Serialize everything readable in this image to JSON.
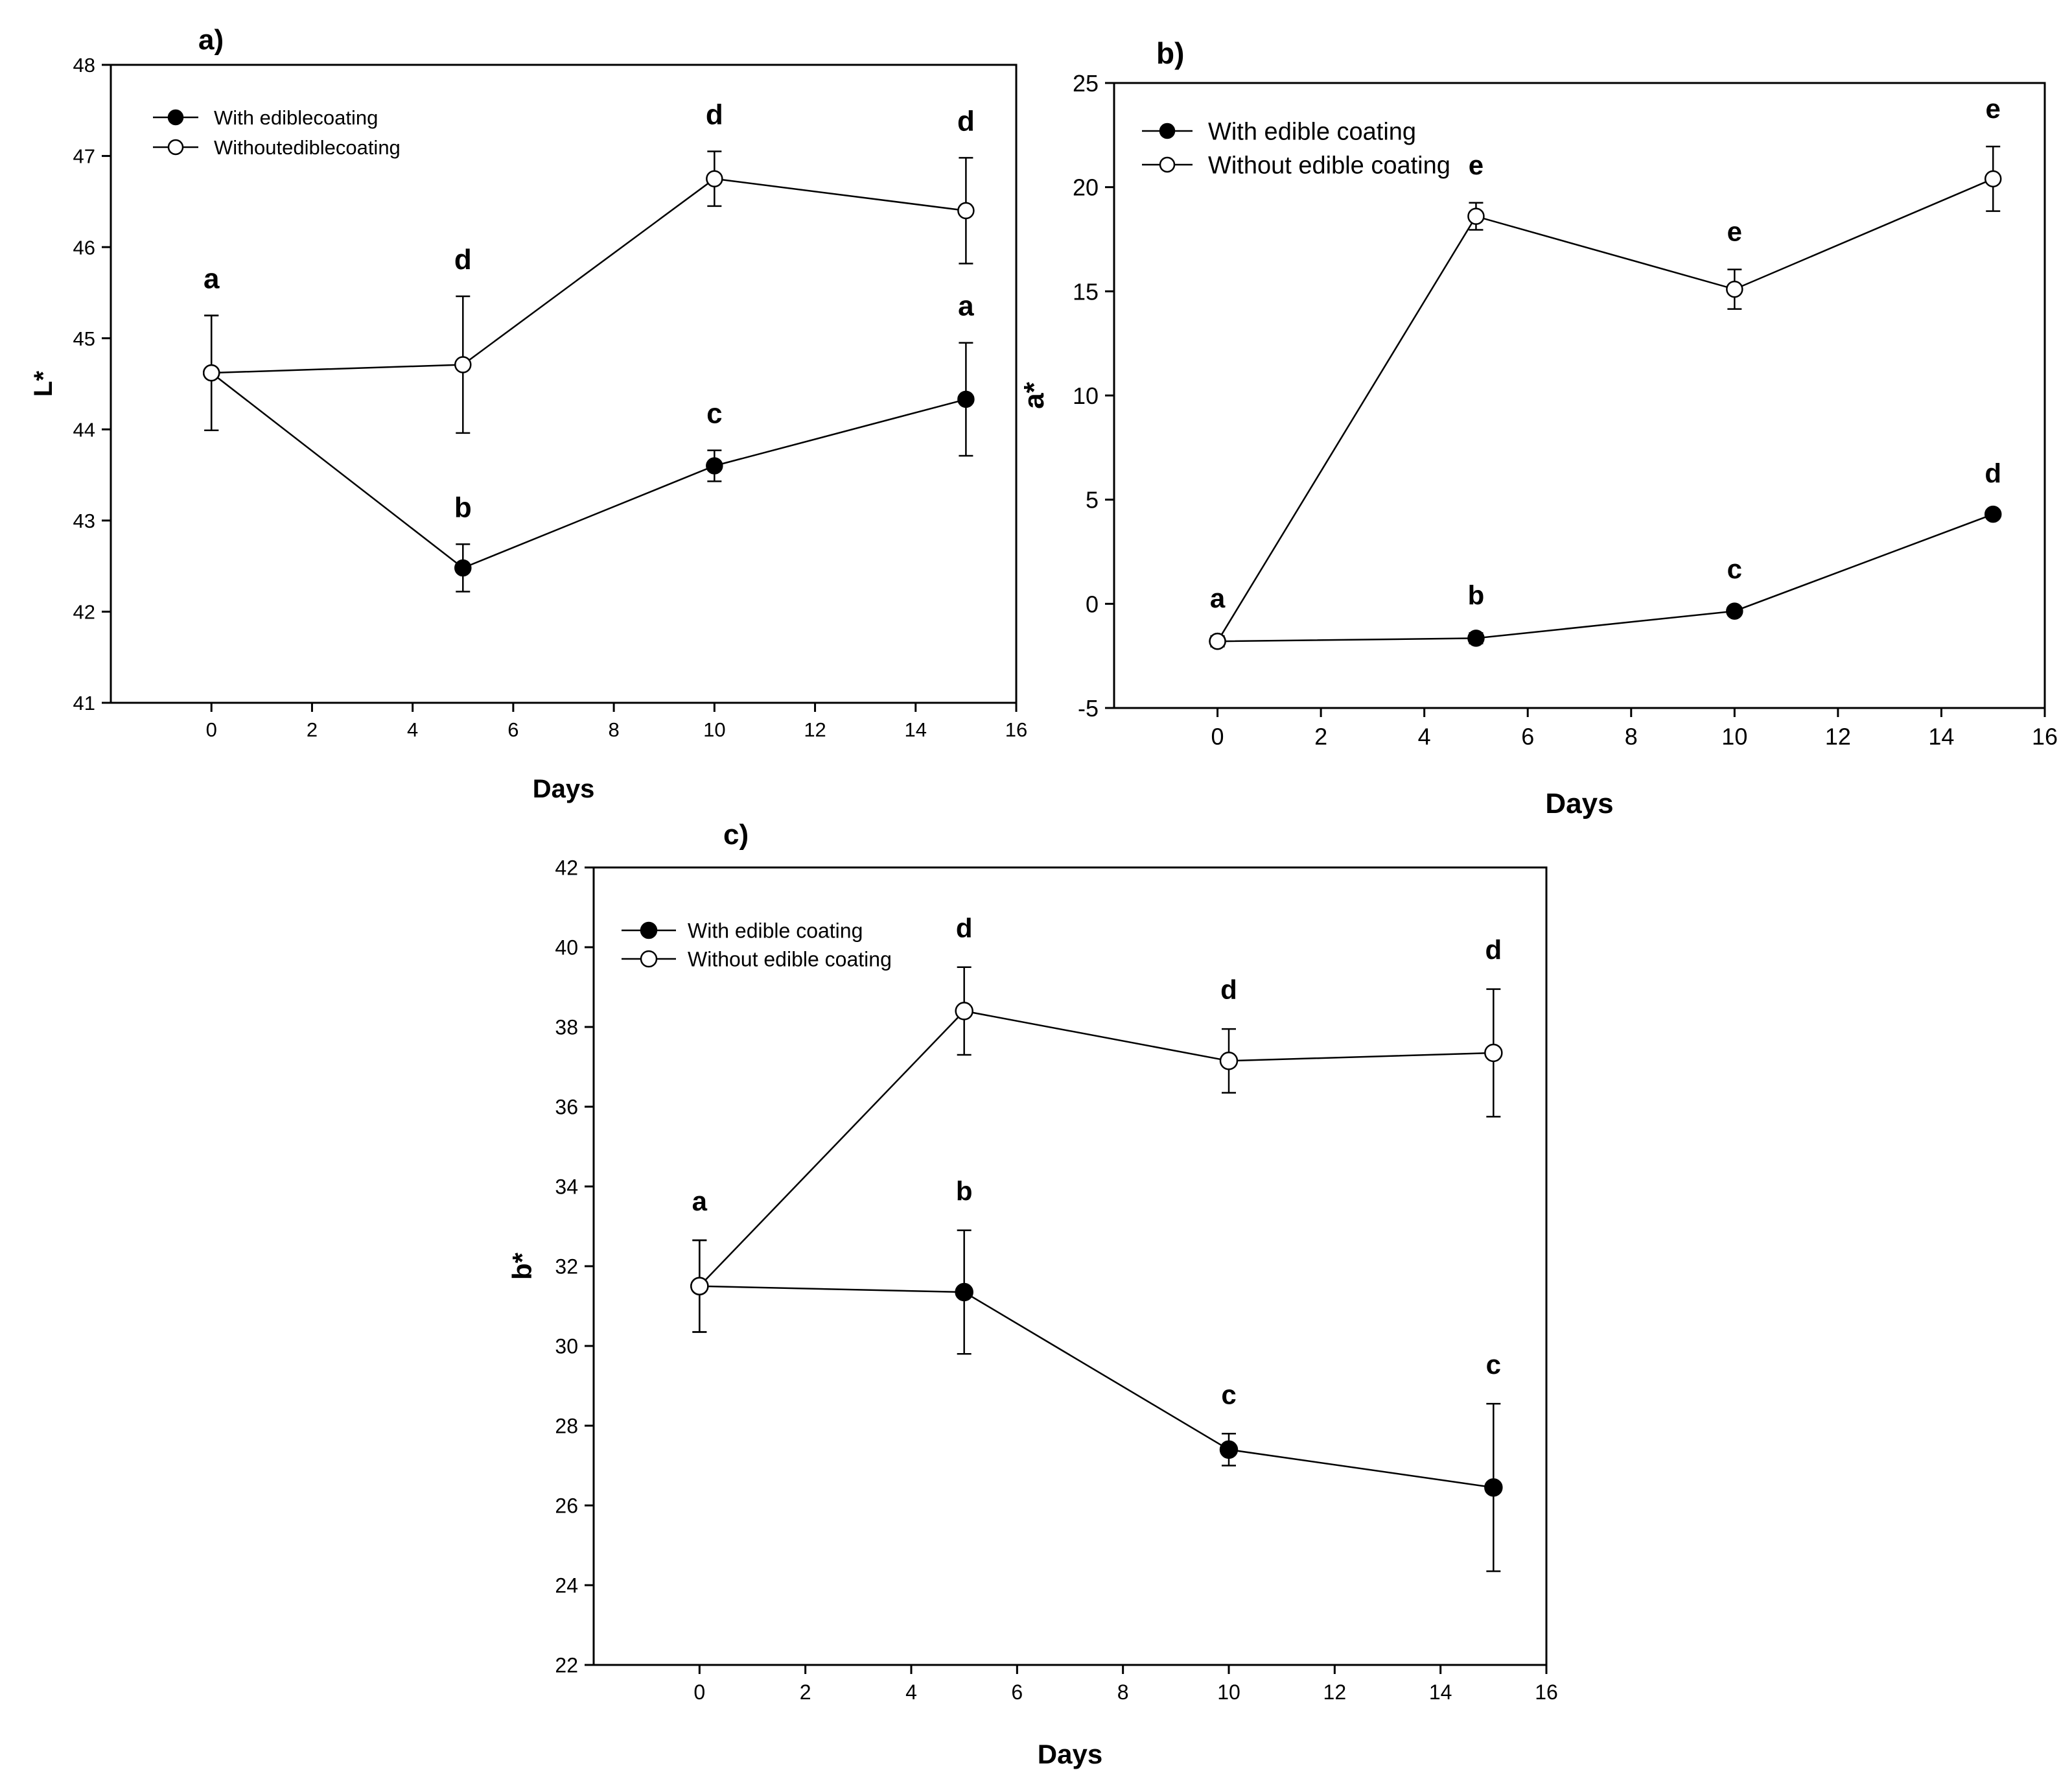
{
  "chart_data": [
    {
      "panel_label": "a)",
      "type": "line",
      "xlabel": "Days",
      "ylabel": "L*",
      "xlim": [
        -2,
        16
      ],
      "ylim": [
        41,
        48
      ],
      "xticks": [
        0,
        2,
        4,
        6,
        8,
        10,
        12,
        14,
        16
      ],
      "yticks": [
        41,
        42,
        43,
        44,
        45,
        46,
        47,
        48
      ],
      "x": [
        0,
        5,
        10,
        15
      ],
      "legend_position": "top-left",
      "series": [
        {
          "name": "With ediblecoating",
          "marker": "filled-circle",
          "values": [
            44.62,
            42.48,
            43.6,
            44.33
          ],
          "errors": [
            0.63,
            0.26,
            0.17,
            0.62
          ],
          "letters": [
            "a",
            "b",
            "c",
            "a"
          ]
        },
        {
          "name": "Withoutediblecoating",
          "marker": "open-circle",
          "values": [
            44.62,
            44.71,
            46.75,
            46.4
          ],
          "errors": [
            0.63,
            0.75,
            0.3,
            0.58
          ],
          "letters": [
            "",
            "d",
            "d",
            "d"
          ]
        }
      ]
    },
    {
      "panel_label": "b)",
      "type": "line",
      "xlabel": "Days",
      "ylabel": "a*",
      "xlim": [
        -2,
        16
      ],
      "ylim": [
        -5,
        25
      ],
      "xticks": [
        0,
        2,
        4,
        6,
        8,
        10,
        12,
        14,
        16
      ],
      "yticks": [
        -5,
        0,
        5,
        10,
        15,
        20,
        25
      ],
      "x": [
        0,
        5,
        10,
        15
      ],
      "legend_position": "top-left",
      "series": [
        {
          "name": "With edible coating",
          "marker": "filled-circle",
          "values": [
            -1.8,
            -1.65,
            -0.35,
            4.3
          ],
          "errors": [
            0.25,
            0.25,
            0.2,
            0.15
          ],
          "letters": [
            "a",
            "b",
            "c",
            "d"
          ]
        },
        {
          "name": "Without edible coating",
          "marker": "open-circle",
          "values": [
            -1.8,
            18.6,
            15.1,
            20.4
          ],
          "errors": [
            0.25,
            0.65,
            0.95,
            1.55
          ],
          "letters": [
            "",
            "e",
            "e",
            "e"
          ]
        }
      ]
    },
    {
      "panel_label": "c)",
      "type": "line",
      "xlabel": "Days",
      "ylabel": "b*",
      "xlim": [
        -2,
        16
      ],
      "ylim": [
        22,
        42
      ],
      "xticks": [
        0,
        2,
        4,
        6,
        8,
        10,
        12,
        14,
        16
      ],
      "yticks": [
        22,
        24,
        26,
        28,
        30,
        32,
        34,
        36,
        38,
        40,
        42
      ],
      "x": [
        0,
        5,
        10,
        15
      ],
      "legend_position": "top-left",
      "series": [
        {
          "name": "With edible coating",
          "marker": "filled-circle",
          "values": [
            31.5,
            31.35,
            27.4,
            26.45
          ],
          "errors": [
            1.15,
            1.55,
            0.4,
            2.1
          ],
          "letters": [
            "a",
            "b",
            "c",
            "c"
          ]
        },
        {
          "name": "Without edible coating",
          "marker": "open-circle",
          "values": [
            31.5,
            38.4,
            37.15,
            37.35
          ],
          "errors": [
            1.15,
            1.1,
            0.8,
            1.6
          ],
          "letters": [
            "",
            "d",
            "d",
            "d"
          ]
        }
      ]
    }
  ]
}
